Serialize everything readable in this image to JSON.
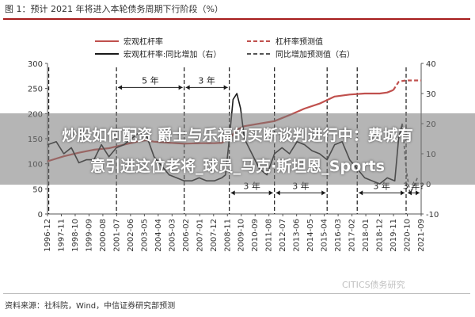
{
  "header": {
    "title": "图 1：预计 2021 年将进入本轮债务周期下行阶段（%）"
  },
  "footer": {
    "source": "资料来源：社科院，Wind，中信证券研究部预测",
    "watermark": "CITICS债务研究"
  },
  "overlay": {
    "line1": "炒股如何配资 爵士与乐福的买断谈判进行中：费城有",
    "line2": "意引进这位老将_球员_马克·斯坦恩_Sports"
  },
  "colors": {
    "leverage": "#c0504d",
    "yoy": "#1a1a1a",
    "forecast_red": "#c0504d",
    "forecast_gray": "#555555"
  },
  "chart_data": {
    "type": "line",
    "legend": [
      {
        "name": "宏观杠杆率",
        "style": "solid",
        "color": "#c0504d"
      },
      {
        "name": "杠杆率预测值",
        "style": "dashed",
        "color": "#c0504d"
      },
      {
        "name": "宏观杠杆率:同比增加（右）",
        "style": "solid",
        "color": "#1a1a1a"
      },
      {
        "name": "同比增加预测值（右）",
        "style": "dashed",
        "color": "#555555"
      }
    ],
    "ylim_left": [
      0,
      300
    ],
    "yticks_left": [
      0,
      50,
      100,
      150,
      200,
      250,
      300
    ],
    "ylim_right": [
      -10,
      40
    ],
    "yticks_right": [
      -10,
      0,
      10,
      20,
      30,
      40
    ],
    "xlim": [
      1996.917,
      2021.75
    ],
    "xticks": [
      "1996-12",
      "1997-11",
      "1998-10",
      "1999-09",
      "2000-08",
      "2001-07",
      "2002-06",
      "2003-05",
      "2004-04",
      "2005-03",
      "2006-02",
      "2007-01",
      "2007-12",
      "2008-11",
      "2009-10",
      "2010-09",
      "2011-08",
      "2012-07",
      "2013-06",
      "2014-05",
      "2015-04",
      "2016-03",
      "2017-02",
      "2018-01",
      "2018-12",
      "2019-11",
      "2020-10",
      "2021-09"
    ],
    "cycle_lines_x": [
      1997.0,
      2001.5,
      2006.0,
      2009.0,
      2012.0,
      2015.5,
      2017.5,
      2020.75
    ],
    "annotations": [
      {
        "label": "5 年",
        "x_from": 2001.5,
        "x_to": 2006.0,
        "y_right": 32
      },
      {
        "label": "3 年",
        "x_from": 2006.0,
        "x_to": 2009.0,
        "y_right": 32
      },
      {
        "label": "3 年",
        "x_from": 2009.0,
        "x_to": 2012.0,
        "y_right": -3
      },
      {
        "label": "3 年",
        "x_from": 2012.0,
        "x_to": 2015.5,
        "y_right": -3
      },
      {
        "label": "3 年",
        "x_from": 2017.5,
        "x_to": 2020.75,
        "y_right": -3
      },
      {
        "label": "3 年?",
        "x_from": 2020.75,
        "x_to": 2021.75,
        "y_right": -3
      }
    ],
    "series": [
      {
        "name": "宏观杠杆率",
        "axis": "left",
        "x": [
          1996.92,
          1998.0,
          1999.0,
          2000.0,
          2001.0,
          2002.0,
          2003.0,
          2003.5,
          2004.0,
          2005.0,
          2006.0,
          2007.0,
          2008.0,
          2008.5,
          2009.0,
          2009.5,
          2010.0,
          2011.0,
          2012.0,
          2013.0,
          2014.0,
          2015.0,
          2016.0,
          2017.0,
          2018.0,
          2019.0,
          2019.5,
          2019.9
        ],
        "y": [
          105,
          115,
          122,
          128,
          131,
          138,
          145,
          147,
          144,
          142,
          140,
          141,
          141,
          142,
          150,
          168,
          175,
          180,
          185,
          197,
          210,
          220,
          234,
          238,
          240,
          240,
          242,
          247
        ]
      },
      {
        "name": "杠杆率预测值",
        "axis": "left",
        "x": [
          2019.9,
          2020.25,
          2020.5,
          2020.75,
          2021.0,
          2021.75
        ],
        "y": [
          247,
          263,
          265,
          266,
          266,
          266
        ]
      },
      {
        "name": "宏观杠杆率:同比增加（右）",
        "axis": "right",
        "x": [
          1996.92,
          1997.5,
          1998.0,
          1998.5,
          1999.0,
          1999.5,
          2000.0,
          2000.5,
          2001.0,
          2001.5,
          2002.0,
          2002.5,
          2003.0,
          2003.5,
          2004.0,
          2004.5,
          2005.0,
          2005.5,
          2006.0,
          2006.5,
          2007.0,
          2007.5,
          2008.0,
          2008.5,
          2008.75,
          2009.0,
          2009.25,
          2009.5,
          2009.75,
          2010.0,
          2010.5,
          2011.0,
          2011.5,
          2012.0,
          2012.5,
          2013.0,
          2013.5,
          2014.0,
          2014.5,
          2015.0,
          2015.5,
          2016.0,
          2016.5,
          2017.0,
          2017.5,
          2018.0,
          2018.5,
          2019.0,
          2019.5,
          2020.0,
          2020.25,
          2020.5
        ],
        "y": [
          13,
          14,
          10,
          12,
          7,
          8,
          8,
          13,
          9,
          12,
          13,
          15,
          17,
          16,
          9,
          6,
          3,
          2,
          1,
          1,
          2,
          1,
          1,
          2,
          3,
          15,
          28,
          30,
          25,
          15,
          10,
          5,
          3,
          10,
          12,
          10,
          14,
          13,
          11,
          10,
          8,
          13,
          14,
          8,
          5,
          2,
          1,
          0,
          2,
          1,
          15,
          20
        ]
      },
      {
        "name": "同比增加预测值（右）",
        "axis": "right",
        "x": [
          2020.5,
          2020.75,
          2021.0,
          2021.25,
          2021.5
        ],
        "y": [
          20,
          5,
          -3,
          -1,
          2
        ]
      }
    ]
  }
}
